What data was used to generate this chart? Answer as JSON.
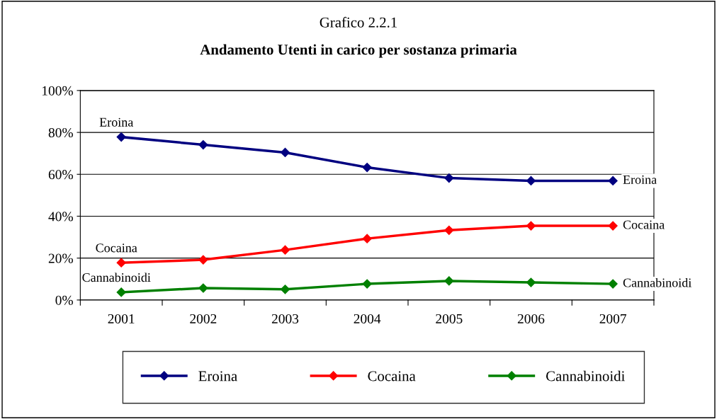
{
  "chart_data": {
    "type": "line",
    "title": "Grafico 2.2.1",
    "subtitle": "Andamento Utenti in carico per sostanza primaria",
    "categories": [
      "2001",
      "2002",
      "2003",
      "2004",
      "2005",
      "2006",
      "2007"
    ],
    "series": [
      {
        "name": "Eroina",
        "color": "#000080",
        "values": [
          77.8,
          74.1,
          70.4,
          63.3,
          58.2,
          56.9,
          56.9
        ]
      },
      {
        "name": "Cocaina",
        "color": "#ff0000",
        "values": [
          17.8,
          19.2,
          23.9,
          29.3,
          33.3,
          35.4,
          35.4
        ]
      },
      {
        "name": "Cannabinoidi",
        "color": "#008000",
        "values": [
          3.7,
          5.7,
          5.1,
          7.7,
          9.1,
          8.4,
          7.7
        ]
      }
    ],
    "ylim": [
      0,
      100
    ],
    "yticks": [
      {
        "value": 0,
        "label": "0%"
      },
      {
        "value": 20,
        "label": "20%"
      },
      {
        "value": 40,
        "label": "40%"
      },
      {
        "value": 60,
        "label": "60%"
      },
      {
        "value": 80,
        "label": "80%"
      },
      {
        "value": 100,
        "label": "100%"
      }
    ],
    "grid": "y",
    "legend": "bottom",
    "marker": "diamond",
    "line_style": "solid"
  }
}
